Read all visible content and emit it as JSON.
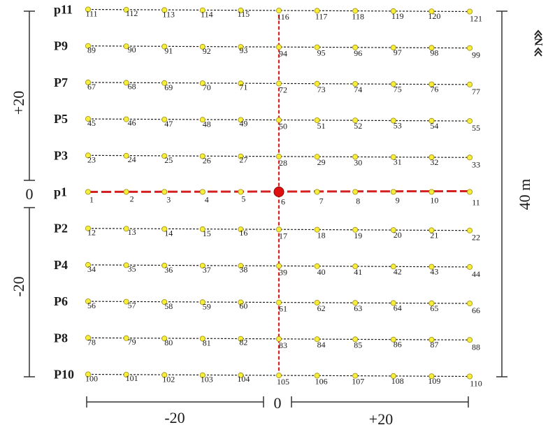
{
  "rows": [
    {
      "label": "p11",
      "points": [
        "111",
        "112",
        "113",
        "114",
        "115",
        "116",
        "117",
        "118",
        "119",
        "120",
        "121"
      ]
    },
    {
      "label": "P9",
      "points": [
        "89",
        "90",
        "91",
        "92",
        "93",
        "94",
        "95",
        "96",
        "97",
        "98",
        "99"
      ]
    },
    {
      "label": "P7",
      "points": [
        "67",
        "68",
        "69",
        "70",
        "71",
        "72",
        "73",
        "74",
        "75",
        "76",
        "77"
      ]
    },
    {
      "label": "P5",
      "points": [
        "45",
        "46",
        "47",
        "48",
        "49",
        "50",
        "51",
        "52",
        "53",
        "54",
        "55"
      ]
    },
    {
      "label": "P3",
      "points": [
        "23",
        "24",
        "25",
        "26",
        "27",
        "28",
        "29",
        "30",
        "31",
        "32",
        "33"
      ]
    },
    {
      "label": "p1",
      "points": [
        "1",
        "2",
        "3",
        "4",
        "5",
        "6",
        "7",
        "8",
        "9",
        "10",
        "11"
      ]
    },
    {
      "label": "P2",
      "points": [
        "12",
        "13",
        "14",
        "15",
        "16",
        "17",
        "18",
        "19",
        "20",
        "21",
        "22"
      ]
    },
    {
      "label": "P4",
      "points": [
        "34",
        "35",
        "36",
        "37",
        "38",
        "39",
        "40",
        "41",
        "42",
        "43",
        "44"
      ]
    },
    {
      "label": "P6",
      "points": [
        "56",
        "57",
        "58",
        "59",
        "60",
        "61",
        "62",
        "63",
        "64",
        "65",
        "66"
      ]
    },
    {
      "label": "P8",
      "points": [
        "78",
        "79",
        "80",
        "81",
        "82",
        "83",
        "84",
        "85",
        "86",
        "87",
        "88"
      ]
    },
    {
      "label": "P10",
      "points": [
        "100",
        "101",
        "102",
        "103",
        "104",
        "105",
        "106",
        "107",
        "108",
        "109",
        "110"
      ]
    }
  ],
  "highlight_row": "p1",
  "center_point": "6",
  "scales": {
    "left_upper": "+20",
    "left_zero": "0",
    "left_lower": "-20",
    "right_length": "40 m",
    "bottom_left": "-20",
    "bottom_zero": "0",
    "bottom_right": "+20"
  },
  "north_symbol": "N",
  "colors": {
    "grid_line": "#222222",
    "point_fill": "#f5ee3a",
    "point_stroke": "#a08a10",
    "axis_red": "#d42020",
    "center_fill": "#e01010"
  }
}
